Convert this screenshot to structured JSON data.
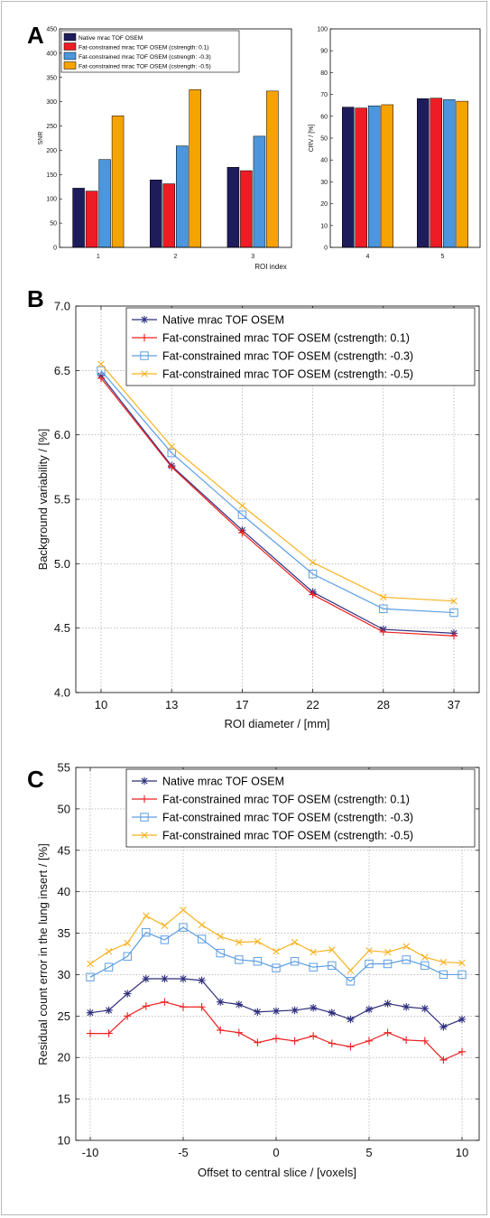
{
  "colors": {
    "native": "#1f1c5c",
    "fat_0_1": "#ee1c24",
    "fat_m0_3": "#4b96dc",
    "fat_m0_5": "#f5a300",
    "line_native": "#2e2e7e",
    "line_fat_0_1": "#ee2020",
    "line_fat_m0_3": "#5e9ee2",
    "line_fat_m0_5": "#f7b21e"
  },
  "panels": {
    "a": "A",
    "b": "B",
    "c": "C"
  },
  "chart_data": [
    {
      "panel": "A",
      "type": "bar",
      "ylabel": "SNR",
      "ylim": [
        0,
        450
      ],
      "yticks": [
        "0",
        "50",
        "100",
        "150",
        "200",
        "250",
        "300",
        "350",
        "400",
        "450"
      ],
      "categories": [
        "1",
        "2",
        "3"
      ],
      "grid": false,
      "legend_position": "top-left",
      "series": [
        {
          "name": "Native mrac TOF OSEM",
          "values": [
            122,
            139,
            165
          ]
        },
        {
          "name": "Fat-constrained mrac TOF OSEM (cstrength: 0.1)",
          "values": [
            116,
            131,
            158
          ]
        },
        {
          "name": "Fat-constrained mrac TOF OSEM (cstrength: -0.3)",
          "values": [
            181,
            209,
            229
          ]
        },
        {
          "name": "Fat-constrained mrac TOF OSEM (cstrength: -0.5)",
          "values": [
            271,
            325,
            322
          ]
        }
      ]
    },
    {
      "panel": "A",
      "type": "bar",
      "ylabel": "CRV / [%]",
      "ylim": [
        0,
        100
      ],
      "yticks": [
        "0",
        "10",
        "20",
        "30",
        "40",
        "50",
        "60",
        "70",
        "80",
        "90",
        "100"
      ],
      "categories": [
        "4",
        "5"
      ],
      "grid": false,
      "series": [
        {
          "name": "Native mrac TOF OSEM",
          "values": [
            64.2,
            68.1
          ]
        },
        {
          "name": "Fat-constrained mrac TOF OSEM (cstrength: 0.1)",
          "values": [
            63.8,
            68.3
          ]
        },
        {
          "name": "Fat-constrained mrac TOF OSEM (cstrength: -0.3)",
          "values": [
            64.8,
            67.6
          ]
        },
        {
          "name": "Fat-constrained mrac TOF OSEM (cstrength: -0.5)",
          "values": [
            65.3,
            66.9
          ]
        }
      ],
      "shared_xlabel": "ROI index"
    },
    {
      "panel": "B",
      "type": "line",
      "xlabel": "ROI diameter / [mm]",
      "ylabel": "Background variability / [%]",
      "x": [
        10,
        13,
        17,
        22,
        28,
        37
      ],
      "xticks": [
        "10",
        "13",
        "17",
        "22",
        "28",
        "37"
      ],
      "ylim": [
        4.0,
        7.0
      ],
      "yticks": [
        "4.0",
        "4.5",
        "5.0",
        "5.5",
        "6.0",
        "6.5",
        "7.0"
      ],
      "grid": true,
      "legend_position": "top-right",
      "series": [
        {
          "name": "Native mrac TOF OSEM",
          "marker": "star",
          "values": [
            6.46,
            5.76,
            5.26,
            4.78,
            4.49,
            4.46
          ]
        },
        {
          "name": "Fat-constrained mrac TOF OSEM (cstrength: 0.1)",
          "marker": "plus",
          "values": [
            6.44,
            5.75,
            5.24,
            4.76,
            4.47,
            4.44
          ]
        },
        {
          "name": "Fat-constrained mrac TOF OSEM (cstrength: -0.3)",
          "marker": "square",
          "values": [
            6.5,
            5.86,
            5.38,
            4.92,
            4.65,
            4.62
          ]
        },
        {
          "name": "Fat-constrained mrac TOF OSEM (cstrength: -0.5)",
          "marker": "x",
          "values": [
            6.55,
            5.91,
            5.45,
            5.01,
            4.74,
            4.71
          ]
        }
      ]
    },
    {
      "panel": "C",
      "type": "line",
      "xlabel": "Offset to central slice / [voxels]",
      "ylabel": "Residual count error in the lung insert / [%]",
      "x": [
        -10,
        -9,
        -8,
        -7,
        -6,
        -5,
        -4,
        -3,
        -2,
        -1,
        0,
        1,
        2,
        3,
        4,
        5,
        6,
        7,
        8,
        9,
        10
      ],
      "xlim": [
        -10,
        10
      ],
      "xticks": [
        "-10",
        "-5",
        "0",
        "5",
        "10"
      ],
      "ylim": [
        10,
        55
      ],
      "yticks": [
        "10",
        "15",
        "20",
        "25",
        "30",
        "35",
        "40",
        "45",
        "50",
        "55"
      ],
      "grid": true,
      "legend_position": "top-right",
      "series": [
        {
          "name": "Native mrac TOF OSEM",
          "marker": "star",
          "values": [
            25.4,
            25.7,
            27.7,
            29.5,
            29.5,
            29.5,
            29.3,
            26.7,
            26.4,
            25.5,
            25.6,
            25.7,
            26.0,
            25.4,
            24.6,
            25.8,
            26.5,
            26.1,
            25.9,
            23.7,
            24.6
          ]
        },
        {
          "name": "Fat-constrained mrac TOF OSEM (cstrength: 0.1)",
          "marker": "plus",
          "values": [
            22.9,
            22.9,
            25.0,
            26.2,
            26.7,
            26.1,
            26.1,
            23.3,
            23.0,
            21.8,
            22.3,
            22.0,
            22.6,
            21.7,
            21.3,
            22.0,
            23.0,
            22.1,
            22.0,
            19.7,
            20.7
          ]
        },
        {
          "name": "Fat-constrained mrac TOF OSEM (cstrength: -0.3)",
          "marker": "square",
          "values": [
            29.7,
            30.9,
            32.2,
            35.1,
            34.2,
            35.7,
            34.3,
            32.6,
            31.8,
            31.6,
            30.8,
            31.6,
            30.9,
            31.1,
            29.2,
            31.3,
            31.3,
            31.8,
            31.1,
            30.0,
            30.0
          ]
        },
        {
          "name": "Fat-constrained mrac TOF OSEM (cstrength: -0.5)",
          "marker": "x",
          "values": [
            31.3,
            32.8,
            33.8,
            37.1,
            35.9,
            37.8,
            36.0,
            34.6,
            33.9,
            34.0,
            32.8,
            33.9,
            32.7,
            33.0,
            30.5,
            32.9,
            32.7,
            33.4,
            32.1,
            31.5,
            31.4
          ]
        }
      ]
    }
  ]
}
